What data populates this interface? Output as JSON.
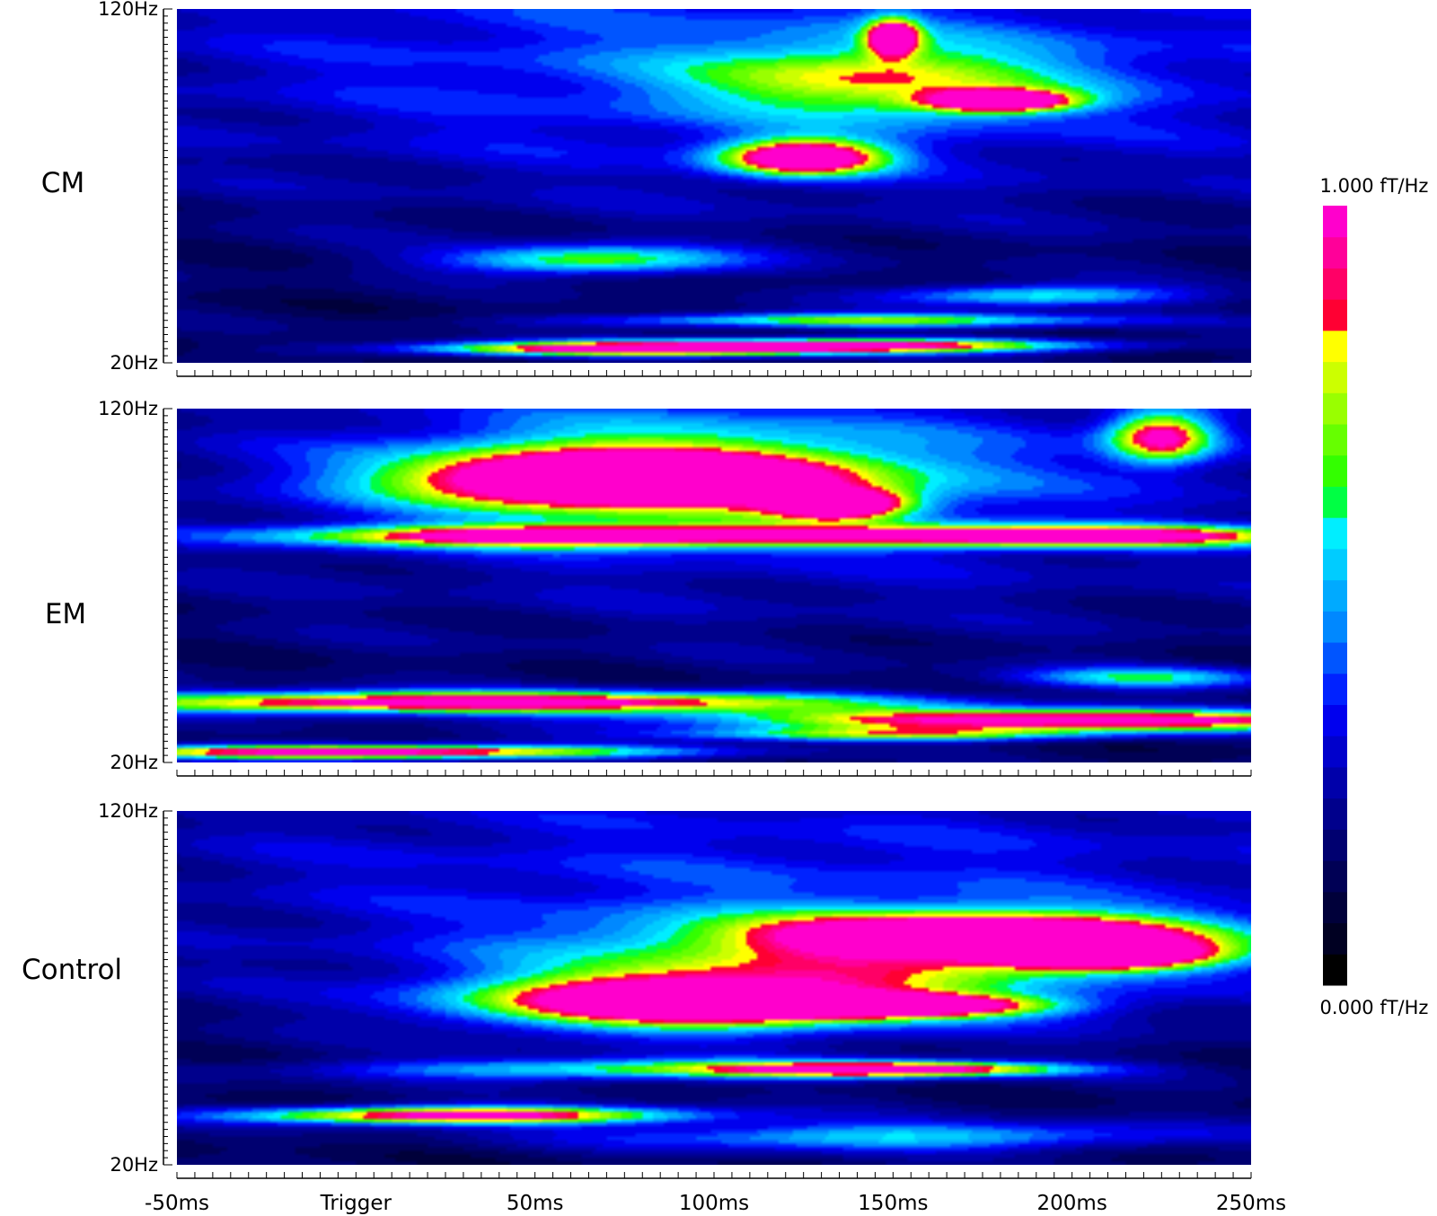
{
  "chart_data": {
    "type": "heatmap",
    "x": {
      "min_ms": -50,
      "max_ms": 250,
      "ticks": [
        {
          "value": -50,
          "label": "-50ms"
        },
        {
          "value": 0,
          "label": "Trigger"
        },
        {
          "value": 50,
          "label": "50ms"
        },
        {
          "value": 100,
          "label": "100ms"
        },
        {
          "value": 150,
          "label": "150ms"
        },
        {
          "value": 200,
          "label": "200ms"
        },
        {
          "value": 250,
          "label": "250ms"
        }
      ]
    },
    "y": {
      "min_hz": 20,
      "max_hz": 120,
      "ticks": [
        {
          "value": 120,
          "label": "120Hz"
        },
        {
          "value": 20,
          "label": "20Hz"
        }
      ]
    },
    "colorbar": {
      "max_label": "1.000 fT/Hz",
      "min_label": "0.000 fT/Hz",
      "min": 0,
      "max": 1,
      "colors": [
        "#000000",
        "#000022",
        "#00003a",
        "#000055",
        "#000070",
        "#00008c",
        "#0000aa",
        "#0000cc",
        "#0000ee",
        "#0022ff",
        "#0055ff",
        "#0088ff",
        "#00aaff",
        "#00ccff",
        "#00eeff",
        "#00ff44",
        "#33ff00",
        "#66ff00",
        "#99ff00",
        "#ccff00",
        "#ffff00",
        "#ff0033",
        "#ff0066",
        "#ff0099",
        "#ff00cc"
      ]
    },
    "panels": [
      {
        "label": "CM",
        "blobs": [
          {
            "t": 125,
            "f": 78,
            "dt": 22,
            "df": 5,
            "v": 0.95
          },
          {
            "t": 150,
            "f": 112,
            "dt": 7,
            "df": 5,
            "v": 0.88
          },
          {
            "t": 180,
            "f": 94,
            "dt": 20,
            "df": 3,
            "v": 0.92
          },
          {
            "t": 145,
            "f": 100,
            "dt": 50,
            "df": 10,
            "v": 0.45
          },
          {
            "t": 65,
            "f": 49,
            "dt": 40,
            "df": 4,
            "v": 0.5
          },
          {
            "t": 80,
            "f": 24,
            "dt": 60,
            "df": 2,
            "v": 0.95
          },
          {
            "t": 150,
            "f": 25,
            "dt": 60,
            "df": 2,
            "v": 0.7
          },
          {
            "t": 190,
            "f": 39,
            "dt": 40,
            "df": 3,
            "v": 0.45
          },
          {
            "t": 140,
            "f": 32,
            "dt": 70,
            "df": 2,
            "v": 0.55
          },
          {
            "t": 120,
            "f": 105,
            "dt": 200,
            "df": 40,
            "v": 0.25
          }
        ]
      },
      {
        "label": "EM",
        "blobs": [
          {
            "t": 75,
            "f": 100,
            "dt": 55,
            "df": 7,
            "v": 0.98
          },
          {
            "t": 135,
            "f": 93,
            "dt": 18,
            "df": 4,
            "v": 0.9
          },
          {
            "t": 85,
            "f": 102,
            "dt": 70,
            "df": 14,
            "v": 0.45
          },
          {
            "t": 225,
            "f": 112,
            "dt": 14,
            "df": 7,
            "v": 0.75
          },
          {
            "t": 60,
            "f": 84,
            "dt": 75,
            "df": 3,
            "v": 0.88
          },
          {
            "t": 200,
            "f": 84,
            "dt": 65,
            "df": 3,
            "v": 0.92
          },
          {
            "t": 30,
            "f": 37,
            "dt": 110,
            "df": 3,
            "v": 0.95
          },
          {
            "t": 200,
            "f": 32,
            "dt": 100,
            "df": 3,
            "v": 0.9
          },
          {
            "t": 0,
            "f": 23,
            "dt": 80,
            "df": 2,
            "v": 0.95
          },
          {
            "t": 150,
            "f": 28,
            "dt": 60,
            "df": 2,
            "v": 0.55
          },
          {
            "t": 220,
            "f": 44,
            "dt": 35,
            "df": 3,
            "v": 0.4
          },
          {
            "t": 120,
            "f": 100,
            "dt": 180,
            "df": 40,
            "v": 0.2
          }
        ]
      },
      {
        "label": "Control",
        "blobs": [
          {
            "t": 180,
            "f": 85,
            "dt": 60,
            "df": 6,
            "v": 0.98
          },
          {
            "t": 210,
            "f": 79,
            "dt": 30,
            "df": 4,
            "v": 0.9
          },
          {
            "t": 90,
            "f": 66,
            "dt": 55,
            "df": 7,
            "v": 0.97
          },
          {
            "t": 150,
            "f": 65,
            "dt": 40,
            "df": 3,
            "v": 0.9
          },
          {
            "t": 130,
            "f": 76,
            "dt": 80,
            "df": 14,
            "v": 0.45
          },
          {
            "t": 150,
            "f": 47,
            "dt": 45,
            "df": 2,
            "v": 0.82
          },
          {
            "t": 30,
            "f": 34,
            "dt": 60,
            "df": 2.5,
            "v": 0.92
          },
          {
            "t": 150,
            "f": 28,
            "dt": 80,
            "df": 4,
            "v": 0.4
          },
          {
            "t": 80,
            "f": 47,
            "dt": 80,
            "df": 3,
            "v": 0.45
          },
          {
            "t": 120,
            "f": 100,
            "dt": 200,
            "df": 40,
            "v": 0.2
          }
        ]
      }
    ]
  }
}
